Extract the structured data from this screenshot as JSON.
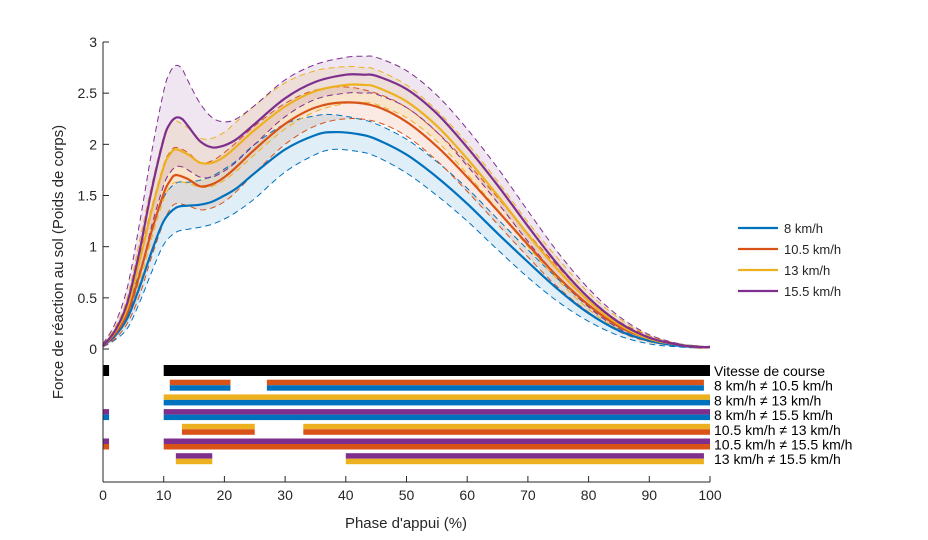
{
  "chart_data": {
    "type": "line",
    "xlabel": "Phase d'appui (%)",
    "ylabel": "Force de réaction au sol (Poids de corps)",
    "xlim": [
      0,
      100
    ],
    "ylim": [
      0,
      3
    ],
    "x_ticks": [
      "0",
      "10",
      "20",
      "30",
      "40",
      "50",
      "60",
      "70",
      "80",
      "90",
      "100"
    ],
    "y_ticks": [
      "0",
      "0.5",
      "1",
      "1.5",
      "2",
      "2.5",
      "3"
    ],
    "legend_position": "right",
    "series": [
      {
        "name": "8 km/h",
        "color": "#0072BD",
        "x": [
          0,
          2,
          4,
          6,
          8,
          10,
          12,
          14,
          16,
          18,
          20,
          22,
          25,
          30,
          35,
          38,
          42,
          45,
          50,
          55,
          60,
          65,
          70,
          75,
          80,
          85,
          90,
          95,
          98,
          100
        ],
        "mean": [
          0.03,
          0.13,
          0.3,
          0.6,
          0.95,
          1.25,
          1.38,
          1.4,
          1.41,
          1.44,
          1.5,
          1.57,
          1.72,
          1.95,
          2.09,
          2.12,
          2.1,
          2.05,
          1.9,
          1.68,
          1.42,
          1.13,
          0.85,
          0.58,
          0.35,
          0.18,
          0.08,
          0.03,
          0.02,
          0.02
        ],
        "sd_upper": [
          0.04,
          0.17,
          0.4,
          0.75,
          1.15,
          1.48,
          1.62,
          1.63,
          1.65,
          1.69,
          1.76,
          1.84,
          2.0,
          2.2,
          2.28,
          2.29,
          2.25,
          2.2,
          2.05,
          1.83,
          1.57,
          1.27,
          0.97,
          0.68,
          0.42,
          0.23,
          0.11,
          0.05,
          0.03,
          0.02
        ],
        "sd_lower": [
          0.02,
          0.09,
          0.2,
          0.45,
          0.75,
          1.02,
          1.14,
          1.17,
          1.19,
          1.22,
          1.27,
          1.34,
          1.47,
          1.73,
          1.9,
          1.95,
          1.93,
          1.88,
          1.72,
          1.5,
          1.25,
          0.97,
          0.7,
          0.46,
          0.27,
          0.13,
          0.05,
          0.02,
          0.01,
          0.01
        ]
      },
      {
        "name": "10.5 km/h",
        "color": "#D95319",
        "x": [
          0,
          2,
          4,
          6,
          8,
          10,
          11,
          12,
          14,
          16,
          18,
          20,
          22,
          25,
          30,
          35,
          40,
          45,
          50,
          55,
          60,
          65,
          70,
          75,
          80,
          85,
          90,
          95,
          98,
          100
        ],
        "mean": [
          0.03,
          0.15,
          0.35,
          0.72,
          1.15,
          1.52,
          1.64,
          1.7,
          1.66,
          1.59,
          1.61,
          1.68,
          1.78,
          1.95,
          2.2,
          2.36,
          2.41,
          2.37,
          2.22,
          1.98,
          1.68,
          1.35,
          1.02,
          0.7,
          0.43,
          0.22,
          0.1,
          0.04,
          0.02,
          0.02
        ],
        "sd_upper": [
          0.04,
          0.19,
          0.45,
          0.9,
          1.38,
          1.8,
          1.92,
          1.97,
          1.92,
          1.82,
          1.84,
          1.92,
          2.02,
          2.18,
          2.4,
          2.53,
          2.56,
          2.5,
          2.36,
          2.12,
          1.82,
          1.48,
          1.13,
          0.8,
          0.5,
          0.27,
          0.13,
          0.05,
          0.03,
          0.02
        ],
        "sd_lower": [
          0.02,
          0.1,
          0.25,
          0.52,
          0.9,
          1.24,
          1.36,
          1.42,
          1.4,
          1.36,
          1.38,
          1.44,
          1.54,
          1.72,
          2.0,
          2.18,
          2.25,
          2.22,
          2.08,
          1.84,
          1.54,
          1.22,
          0.9,
          0.6,
          0.36,
          0.17,
          0.07,
          0.03,
          0.01,
          0.01
        ]
      },
      {
        "name": "13 km/h",
        "color": "#EDB120",
        "x": [
          0,
          2,
          4,
          6,
          8,
          10,
          11,
          12,
          14,
          16,
          18,
          20,
          22,
          25,
          30,
          35,
          40,
          43,
          45,
          50,
          55,
          60,
          65,
          70,
          75,
          80,
          85,
          90,
          95,
          98,
          100
        ],
        "mean": [
          0.03,
          0.17,
          0.4,
          0.85,
          1.35,
          1.78,
          1.9,
          1.95,
          1.9,
          1.82,
          1.82,
          1.88,
          1.98,
          2.14,
          2.37,
          2.52,
          2.58,
          2.58,
          2.56,
          2.42,
          2.18,
          1.86,
          1.5,
          1.12,
          0.77,
          0.47,
          0.24,
          0.1,
          0.04,
          0.02,
          0.02
        ],
        "sd_upper": [
          0.05,
          0.21,
          0.5,
          1.05,
          1.6,
          2.08,
          2.2,
          2.23,
          2.16,
          2.06,
          2.06,
          2.12,
          2.22,
          2.38,
          2.6,
          2.72,
          2.76,
          2.75,
          2.73,
          2.58,
          2.33,
          2.01,
          1.64,
          1.24,
          0.88,
          0.55,
          0.3,
          0.13,
          0.05,
          0.03,
          0.02
        ],
        "sd_lower": [
          0.02,
          0.12,
          0.3,
          0.64,
          1.08,
          1.46,
          1.58,
          1.63,
          1.62,
          1.58,
          1.59,
          1.65,
          1.74,
          1.9,
          2.15,
          2.32,
          2.4,
          2.41,
          2.39,
          2.26,
          2.03,
          1.71,
          1.36,
          1.0,
          0.67,
          0.39,
          0.19,
          0.07,
          0.03,
          0.01,
          0.01
        ]
      },
      {
        "name": "15.5 km/h",
        "color": "#7E2F8E",
        "x": [
          0,
          2,
          4,
          6,
          8,
          10,
          11,
          12,
          13,
          14,
          16,
          18,
          20,
          22,
          25,
          30,
          35,
          40,
          43,
          45,
          50,
          55,
          60,
          65,
          70,
          75,
          80,
          85,
          90,
          95,
          98,
          100
        ],
        "mean": [
          0.03,
          0.18,
          0.45,
          0.95,
          1.55,
          2.05,
          2.2,
          2.26,
          2.25,
          2.18,
          2.03,
          1.97,
          1.99,
          2.05,
          2.2,
          2.45,
          2.61,
          2.68,
          2.68,
          2.67,
          2.54,
          2.3,
          1.97,
          1.6,
          1.2,
          0.82,
          0.5,
          0.26,
          0.11,
          0.04,
          0.02,
          0.02
        ],
        "sd_upper": [
          0.05,
          0.25,
          0.6,
          1.22,
          1.92,
          2.52,
          2.7,
          2.77,
          2.74,
          2.62,
          2.4,
          2.26,
          2.22,
          2.25,
          2.38,
          2.63,
          2.78,
          2.85,
          2.86,
          2.85,
          2.72,
          2.48,
          2.15,
          1.77,
          1.35,
          0.94,
          0.59,
          0.32,
          0.14,
          0.05,
          0.03,
          0.02
        ],
        "sd_lower": [
          0.02,
          0.12,
          0.32,
          0.7,
          1.2,
          1.6,
          1.72,
          1.78,
          1.78,
          1.75,
          1.68,
          1.68,
          1.74,
          1.83,
          2.0,
          2.27,
          2.44,
          2.5,
          2.5,
          2.49,
          2.36,
          2.12,
          1.79,
          1.43,
          1.05,
          0.7,
          0.41,
          0.2,
          0.08,
          0.03,
          0.01,
          0.01
        ]
      }
    ],
    "significance": [
      {
        "label": "Vitesse de course",
        "colors": [
          "#000000"
        ],
        "segments": [
          [
            0,
            1
          ],
          [
            10,
            100
          ]
        ]
      },
      {
        "label": "8 km/h ≠ 10.5 km/h",
        "colors": [
          "#D95319",
          "#0072BD"
        ],
        "segments": [
          [
            11,
            21
          ],
          [
            27,
            99
          ]
        ]
      },
      {
        "label": "8 km/h ≠ 13 km/h",
        "colors": [
          "#EDB120",
          "#0072BD"
        ],
        "segments": [
          [
            10,
            100
          ]
        ]
      },
      {
        "label": "8 km/h ≠ 15.5 km/h",
        "colors": [
          "#7E2F8E",
          "#0072BD"
        ],
        "segments": [
          [
            0,
            1
          ],
          [
            10,
            100
          ]
        ]
      },
      {
        "label": "10.5 km/h ≠ 13 km/h",
        "colors": [
          "#EDB120",
          "#D95319"
        ],
        "segments": [
          [
            13,
            25
          ],
          [
            33,
            100
          ]
        ]
      },
      {
        "label": "10.5 km/h ≠ 15.5 km/h",
        "colors": [
          "#7E2F8E",
          "#D95319"
        ],
        "segments": [
          [
            0,
            1
          ],
          [
            10,
            100
          ]
        ]
      },
      {
        "label": "13 km/h ≠ 15.5 km/h",
        "colors": [
          "#7E2F8E",
          "#EDB120"
        ],
        "segments": [
          [
            12,
            18
          ],
          [
            40,
            99
          ]
        ]
      }
    ]
  }
}
